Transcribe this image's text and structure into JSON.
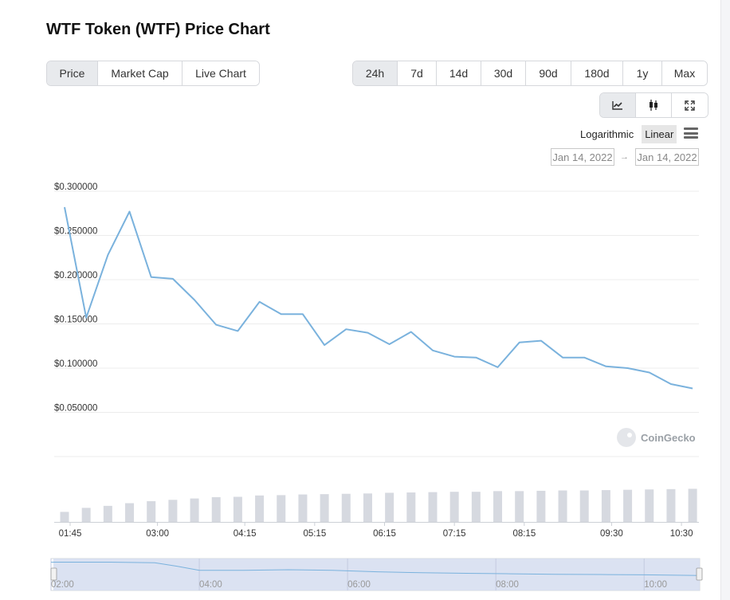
{
  "title": "WTF Token (WTF) Price Chart",
  "chart_types": [
    {
      "label": "Price",
      "active": true,
      "width": 64
    },
    {
      "label": "Market Cap",
      "active": false,
      "width": 106
    },
    {
      "label": "Live Chart",
      "active": false,
      "width": 96
    }
  ],
  "ranges": [
    {
      "label": "24h",
      "active": true,
      "width": 56
    },
    {
      "label": "7d",
      "active": false,
      "width": 49
    },
    {
      "label": "14d",
      "active": false,
      "width": 56
    },
    {
      "label": "30d",
      "active": false,
      "width": 56
    },
    {
      "label": "90d",
      "active": false,
      "width": 57
    },
    {
      "label": "180d",
      "active": false,
      "width": 65
    },
    {
      "label": "1y",
      "active": false,
      "width": 49
    },
    {
      "label": "Max",
      "active": false,
      "width": 56
    }
  ],
  "view_icons": [
    "line-chart-icon",
    "candlestick-icon",
    "fullscreen-icon"
  ],
  "scale": {
    "log_label": "Logarithmic",
    "linear_label": "Linear",
    "active": "Linear"
  },
  "date_range": {
    "from": "Jan 14, 2022",
    "to": "Jan 14, 2022",
    "arrow": "→"
  },
  "watermark": "CoinGecko",
  "colors": {
    "line": "#7ab2dd",
    "volume": "#d6d9e0",
    "grid": "#ececec",
    "navigator_fill": "#d5ddf0",
    "navigator_line": "#7ab2dd"
  },
  "chart_data": {
    "type": "line",
    "title": "WTF Token (WTF) Price Chart",
    "xlabel": "",
    "ylabel": "",
    "x_ticks": [
      "01:45",
      "03:00",
      "04:15",
      "05:15",
      "06:15",
      "07:15",
      "08:15",
      "09:30",
      "10:30"
    ],
    "x_tick_hours": [
      1.75,
      3.0,
      4.25,
      5.25,
      6.25,
      7.25,
      8.25,
      9.5,
      10.5
    ],
    "y_ticks": [
      "$0.300000",
      "$0.250000",
      "$0.200000",
      "$0.150000",
      "$0.100000",
      "$0.050000"
    ],
    "y_tick_values": [
      0.3,
      0.25,
      0.2,
      0.15,
      0.1,
      0.05
    ],
    "ylim": [
      0.0,
      0.3
    ],
    "xlim_hours": [
      1.67,
      10.75
    ],
    "series": [
      {
        "name": "Price",
        "x_hours": [
          1.67,
          1.98,
          2.29,
          2.6,
          2.91,
          3.22,
          3.53,
          3.84,
          4.15,
          4.46,
          4.77,
          5.08,
          5.39,
          5.7,
          6.01,
          6.32,
          6.63,
          6.94,
          7.25,
          7.56,
          7.87,
          8.18,
          8.49,
          8.8,
          9.11,
          9.42,
          9.73,
          10.04,
          10.35,
          10.66
        ],
        "values": [
          0.282,
          0.157,
          0.228,
          0.277,
          0.203,
          0.201,
          0.177,
          0.149,
          0.142,
          0.175,
          0.161,
          0.161,
          0.126,
          0.144,
          0.14,
          0.127,
          0.141,
          0.12,
          0.113,
          0.112,
          0.101,
          0.129,
          0.131,
          0.112,
          0.112,
          0.102,
          0.1,
          0.095,
          0.082,
          0.077
        ]
      }
    ],
    "volume": {
      "x_hours": [
        1.67,
        1.98,
        2.29,
        2.6,
        2.91,
        3.22,
        3.53,
        3.84,
        4.15,
        4.46,
        4.77,
        5.08,
        5.39,
        5.7,
        6.01,
        6.32,
        6.63,
        6.94,
        7.25,
        7.56,
        7.87,
        8.18,
        8.49,
        8.8,
        9.11,
        9.42,
        9.73,
        10.04,
        10.35,
        10.66
      ],
      "relative": [
        0.3,
        0.42,
        0.48,
        0.56,
        0.62,
        0.66,
        0.7,
        0.74,
        0.75,
        0.79,
        0.8,
        0.82,
        0.83,
        0.84,
        0.85,
        0.87,
        0.88,
        0.89,
        0.9,
        0.9,
        0.92,
        0.92,
        0.93,
        0.94,
        0.94,
        0.95,
        0.96,
        0.97,
        0.98,
        0.99
      ]
    },
    "navigator": {
      "x_ticks": [
        "02:00",
        "04:00",
        "06:00",
        "08:00",
        "10:00"
      ],
      "x_tick_hours": [
        2.0,
        4.0,
        6.0,
        8.0,
        10.0
      ],
      "xlim_hours": [
        2.0,
        10.75
      ],
      "x_hours": [
        2.0,
        2.8,
        3.4,
        3.7,
        4.0,
        4.6,
        5.2,
        5.8,
        6.4,
        7.0,
        7.6,
        8.2,
        8.8,
        9.4,
        10.0,
        10.75
      ],
      "values": [
        0.28,
        0.28,
        0.275,
        0.24,
        0.2,
        0.2,
        0.205,
        0.2,
        0.185,
        0.175,
        0.17,
        0.165,
        0.16,
        0.158,
        0.155,
        0.148
      ]
    }
  }
}
